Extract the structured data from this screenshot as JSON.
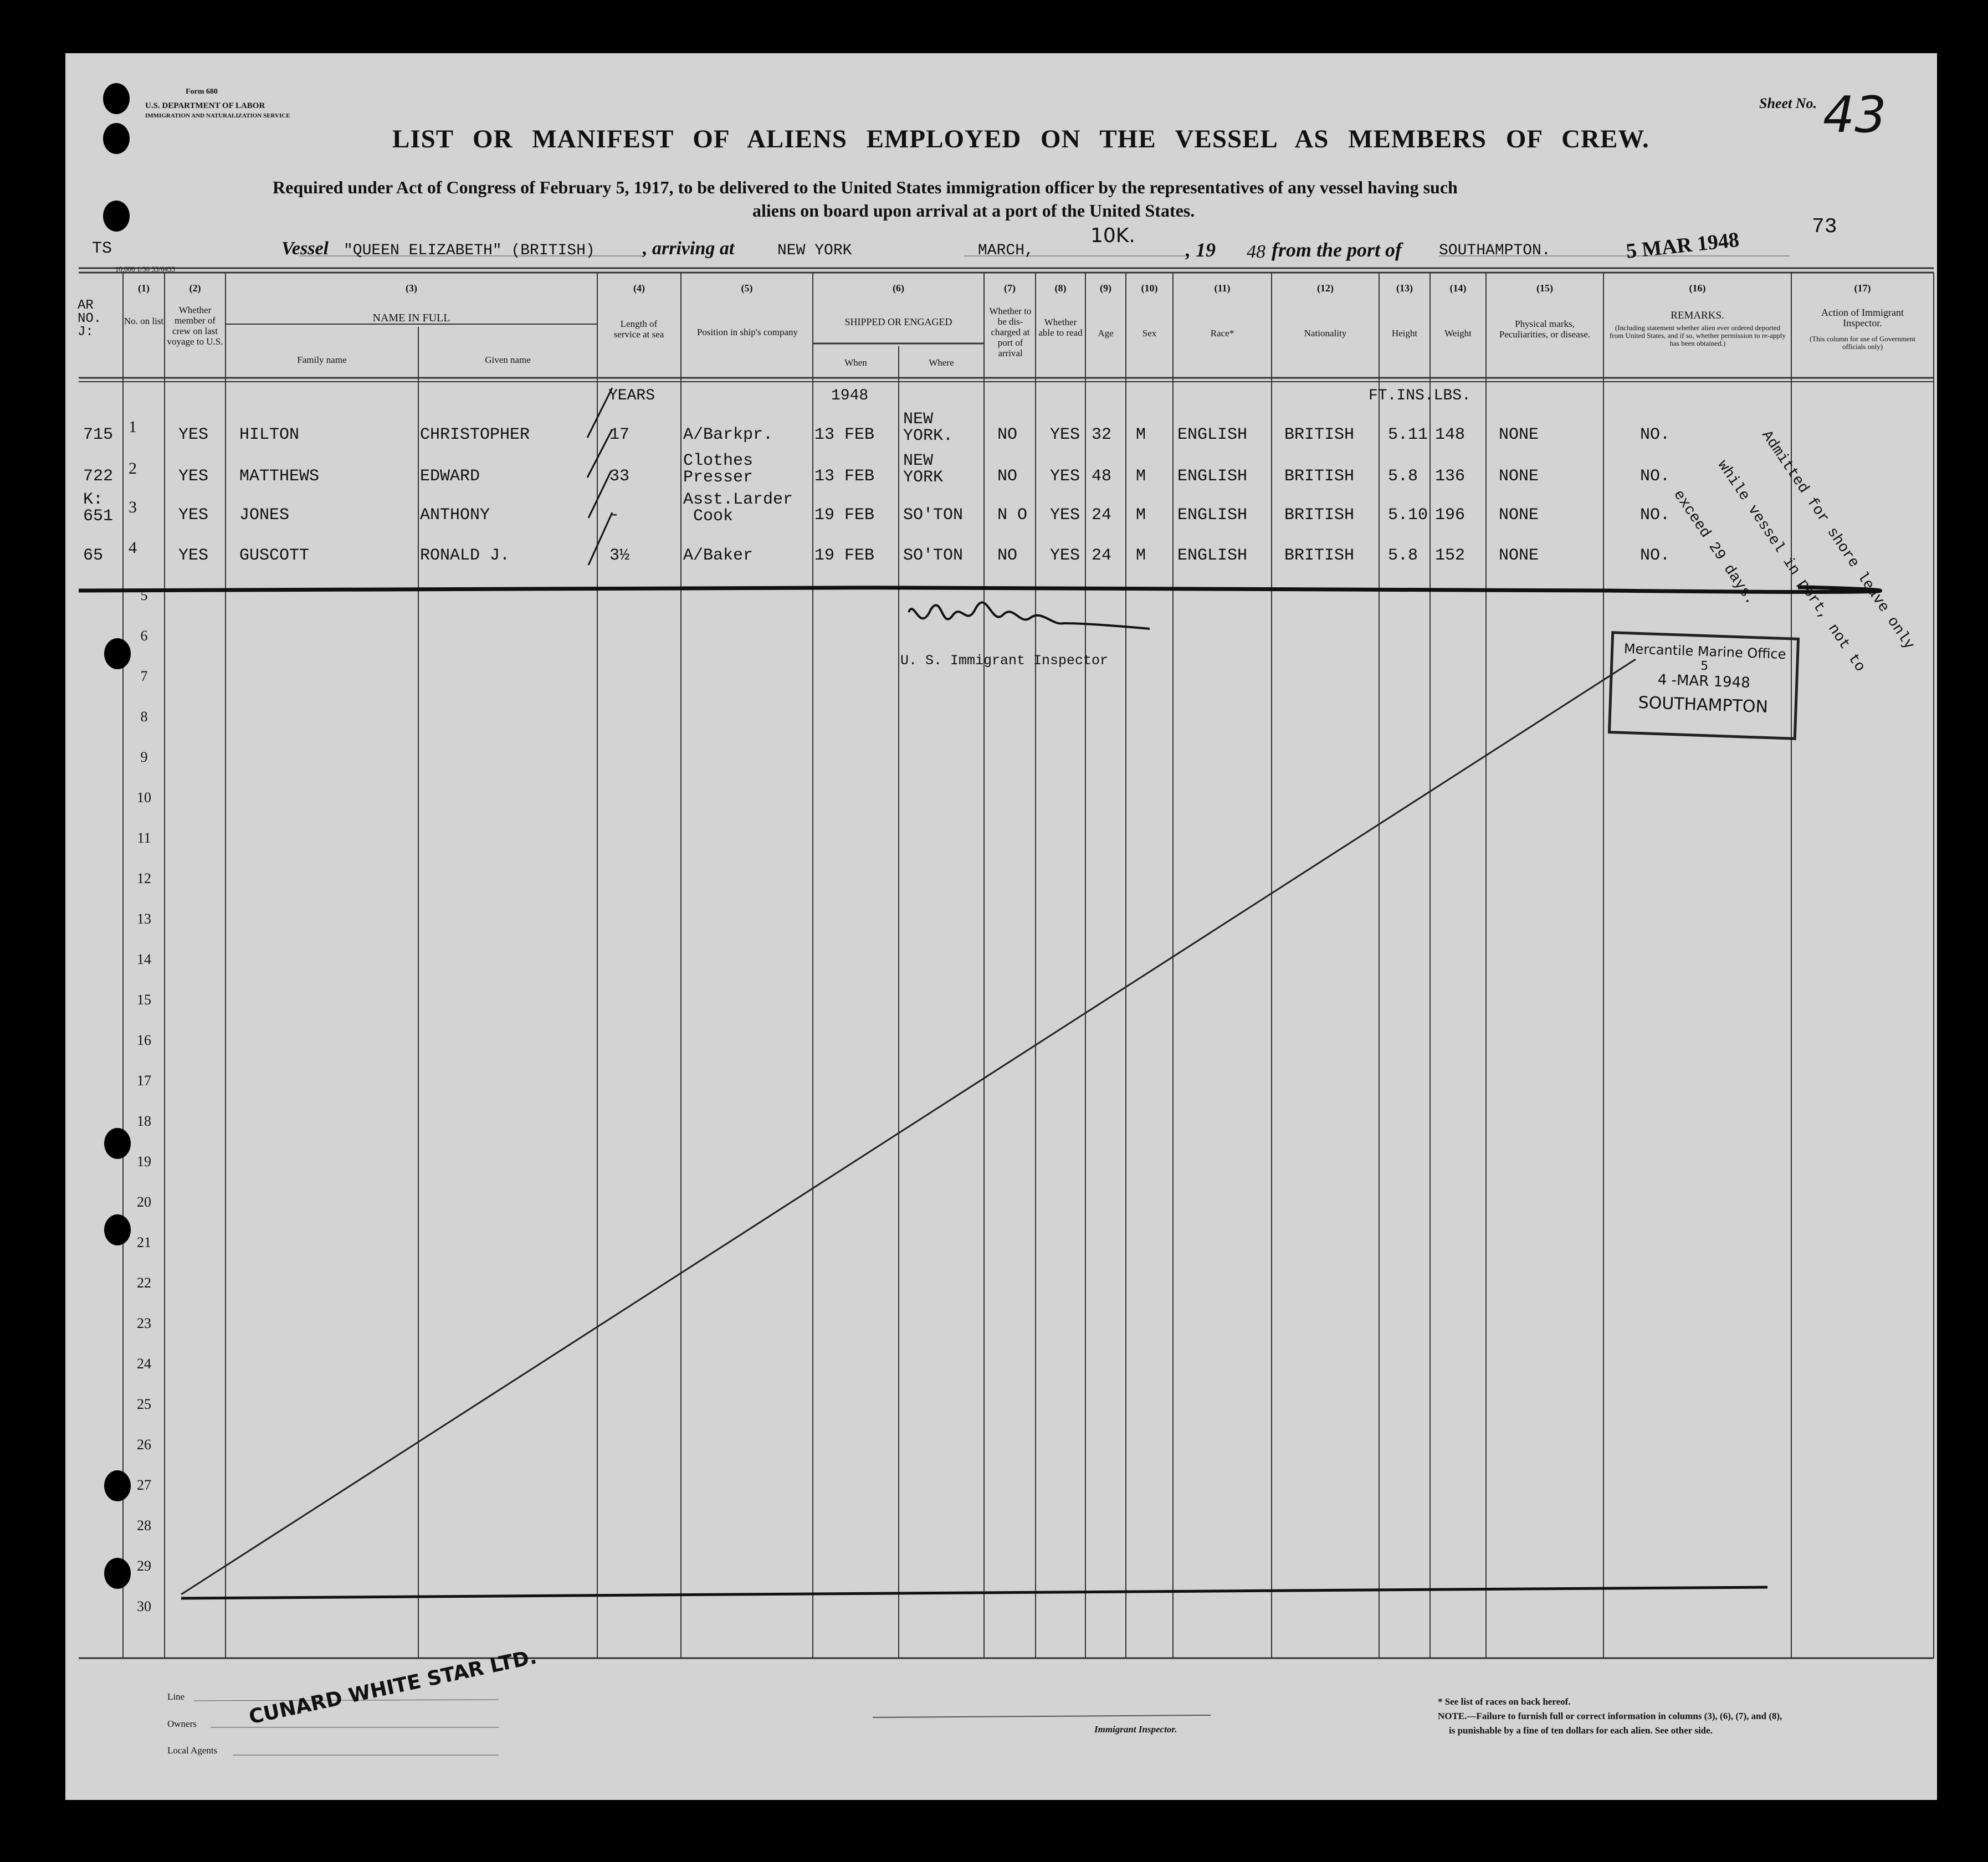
{
  "form": {
    "form_number": "Form 680",
    "department": "U.S. DEPARTMENT OF LABOR",
    "service": "IMMIGRATION AND NATURALIZATION SERVICE",
    "title": "LIST OR MANIFEST OF ALIENS EMPLOYED ON THE VESSEL AS MEMBERS OF CREW.",
    "subtitle_line1": "Required under Act of Congress of February 5, 1917, to be delivered to the United States immigration officer by the representatives of any vessel having such",
    "subtitle_line2": "aliens on board upon arrival at a port of the United States.",
    "sheet_label": "Sheet No.",
    "sheet_number": "43",
    "side_number": "73",
    "ts_mark": "TS",
    "print_code": "10,000  1/30  33/6433"
  },
  "vessel_line": {
    "vessel_label": "Vessel",
    "vessel_name": "\"QUEEN ELIZABETH\" (BRITISH)",
    "arriving_label": ", arriving at",
    "arrival_port": "NEW YORK",
    "month": "MARCH,",
    "day": "10K.",
    "year_label": ", 19",
    "year_suffix": "48",
    "from_label": "from the port of",
    "departure_port": "SOUTHAMPTON.",
    "date_stamp": "5 MAR 1948"
  },
  "columns": {
    "arr_no": "AR\nNO.\nJ:",
    "nums": [
      "(1)",
      "(2)",
      "(3)",
      "(4)",
      "(5)",
      "(6)",
      "(7)",
      "(8)",
      "(9)",
      "(10)",
      "(11)",
      "(12)",
      "(13)",
      "(14)",
      "(15)",
      "(16)",
      "(17)"
    ],
    "c1": "No. on list",
    "c2": "Whether member of crew on last voyage to U.S.",
    "c3": "NAME IN FULL",
    "c3_family": "Family name",
    "c3_given": "Given name",
    "c4": "Length of service at sea",
    "c5": "Position in ship's company",
    "c6": "SHIPPED OR ENGAGED",
    "c6_when": "When",
    "c6_where": "Where",
    "c7": "Whether to be dis-charged at port of arrival",
    "c8": "Whether able to read",
    "c9": "Age",
    "c10": "Sex",
    "c11": "Race*",
    "c12": "Nationality",
    "c13": "Height",
    "c14": "Weight",
    "c15": "Physical marks, Peculiarities, or disease.",
    "c16": "REMARKS.",
    "c16_note": "(Including statement whether alien ever ordered deported from United States, and if so, whether permission to re-apply has been obtained.)",
    "c17": "Action of Immigrant Inspector.",
    "c17_note": "(This column for use of Government officials only)"
  },
  "units": {
    "years": "YEARS",
    "year_shipped": "1948",
    "measures": "FT.INS.LBS."
  },
  "rows": [
    {
      "arr_no": "715",
      "no": "1",
      "crew": "YES",
      "family": "HILTON",
      "given": "CHRISTOPHER",
      "length": "17",
      "position": "A/Barkpr.",
      "when": "13 FEB",
      "where": "NEW\nYORK.",
      "discharged": "NO",
      "read": "YES",
      "age": "32",
      "sex": "M",
      "race": "ENGLISH",
      "nationality": "BRITISH",
      "height": "5.11",
      "weight": "148",
      "marks": "NONE",
      "remarks": "NO."
    },
    {
      "arr_no": "722",
      "no": "2",
      "crew": "YES",
      "family": "MATTHEWS",
      "given": "EDWARD",
      "length": "33",
      "position": "Clothes\nPresser",
      "when": "13 FEB",
      "where": "NEW\nYORK",
      "discharged": "NO",
      "read": "YES",
      "age": "48",
      "sex": "M",
      "race": "ENGLISH",
      "nationality": "BRITISH",
      "height": "5.8",
      "weight": "136",
      "marks": "NONE",
      "remarks": "NO."
    },
    {
      "arr_no": "K:\n651",
      "no": "3",
      "crew": "YES",
      "family": "JONES",
      "given": "ANTHONY",
      "length": "-",
      "position": "Asst.Larder\n Cook",
      "when": "19 FEB",
      "where": "SO'TON",
      "discharged": "N O",
      "read": "YES",
      "age": "24",
      "sex": "M",
      "race": "ENGLISH",
      "nationality": "BRITISH",
      "height": "5.10",
      "weight": "196",
      "marks": "NONE",
      "remarks": "NO."
    },
    {
      "arr_no": "65",
      "no": "4",
      "crew": "YES",
      "family": "GUSCOTT",
      "given": "RONALD J.",
      "length": "3½",
      "position": "A/Baker",
      "when": "19 FEB",
      "where": "SO'TON",
      "discharged": "NO",
      "read": "YES",
      "age": "24",
      "sex": "M",
      "race": "ENGLISH",
      "nationality": "BRITISH",
      "height": "5.8",
      "weight": "152",
      "marks": "NONE",
      "remarks": "NO."
    }
  ],
  "row_numbers": [
    "1",
    "2",
    "3",
    "4",
    "5",
    "6",
    "7",
    "8",
    "9",
    "10",
    "11",
    "12",
    "13",
    "14",
    "15",
    "16",
    "17",
    "18",
    "19",
    "20",
    "21",
    "22",
    "23",
    "24",
    "25",
    "26",
    "27",
    "28",
    "29",
    "30"
  ],
  "annotations": {
    "shore_leave": [
      "Admitted for shore leave only",
      "while vessel in port, not to",
      "exceed 29 days."
    ],
    "inspector_caption": "U. S. Immigrant Inspector",
    "mercantile_stamp": {
      "line1": "Mercantile Marine Office",
      "line2": "5",
      "line3": "4 -MAR 1948",
      "line4": "SOUTHAMPTON"
    }
  },
  "footer": {
    "line_label": "Line",
    "owners_label": "Owners",
    "agents_label": "Local Agents",
    "agent_stamp": "CUNARD WHITE STAR LTD.",
    "inspector_label": "Immigrant Inspector.",
    "race_note": "* See list of races on back hereof.",
    "note_line1": "NOTE.—Failure to furnish full or correct information in columns (3), (6), (7), and (8),",
    "note_line2": "is punishable by a fine of ten dollars for each alien.  See other side."
  }
}
